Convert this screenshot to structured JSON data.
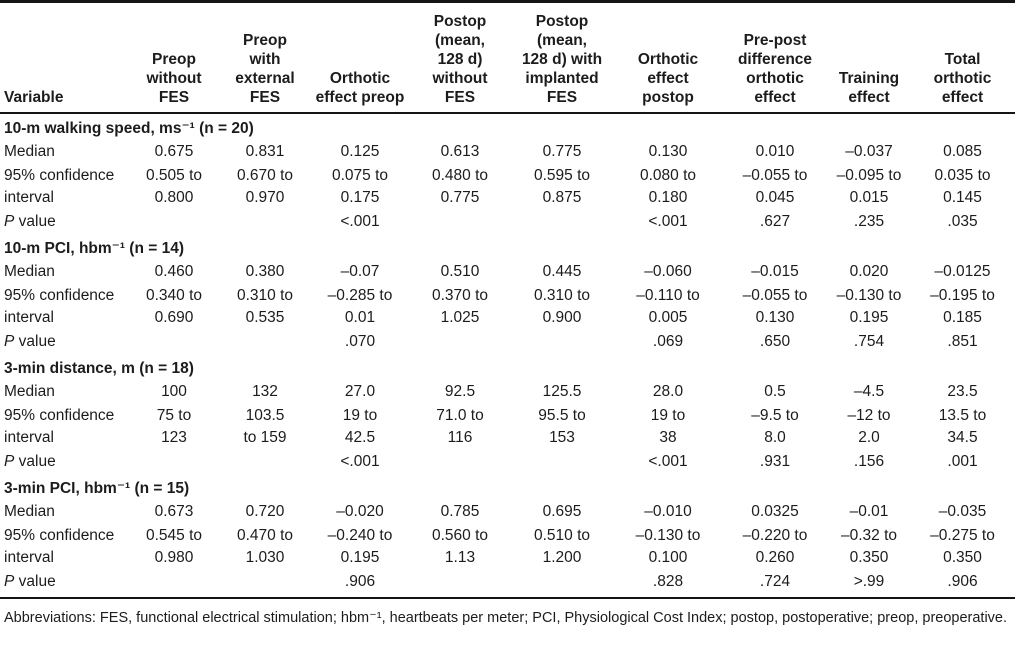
{
  "table": {
    "columns": [
      {
        "label": "Variable"
      },
      {
        "label": "Preop\nwithout\nFES"
      },
      {
        "label": "Preop\nwith\nexternal\nFES"
      },
      {
        "label": "Orthotic\neffect preop"
      },
      {
        "label": "Postop\n(mean,\n128 d)\nwithout\nFES"
      },
      {
        "label": "Postop\n(mean,\n128 d) with\nimplanted\nFES"
      },
      {
        "label": "Orthotic\neffect\npostop"
      },
      {
        "label": "Pre-post\ndifference\northotic\neffect"
      },
      {
        "label": "Training\neffect"
      },
      {
        "label": "Total\northotic\neffect"
      }
    ],
    "row_labels": {
      "median": "Median",
      "ci": "95% confidence\ninterval",
      "p_italic": "P",
      "p_rest": " value"
    },
    "sections": [
      {
        "title": "10-m walking speed, ms⁻¹ (n = 20)",
        "median": [
          "0.675",
          "0.831",
          "0.125",
          "0.613",
          "0.775",
          "0.130",
          "0.010",
          "–0.037",
          "0.085"
        ],
        "ci": [
          "0.505 to\n0.800",
          "0.670 to\n0.970",
          "0.075 to\n0.175",
          "0.480 to\n0.775",
          "0.595 to\n0.875",
          "0.080 to\n0.180",
          "–0.055 to\n0.045",
          "–0.095 to\n0.015",
          "0.035 to\n0.145"
        ],
        "p": [
          "",
          "",
          "<.001",
          "",
          "",
          "<.001",
          ".627",
          ".235",
          ".035"
        ]
      },
      {
        "title": "10-m PCI, hbm⁻¹ (n = 14)",
        "median": [
          "0.460",
          "0.380",
          "–0.07",
          "0.510",
          "0.445",
          "–0.060",
          "–0.015",
          "0.020",
          "–0.0125"
        ],
        "ci": [
          "0.340 to\n0.690",
          "0.310 to\n0.535",
          "–0.285 to\n0.01",
          "0.370 to\n1.025",
          "0.310 to\n0.900",
          "–0.110 to\n0.005",
          "–0.055 to\n0.130",
          "–0.130 to\n0.195",
          "–0.195 to\n0.185"
        ],
        "p": [
          "",
          "",
          ".070",
          "",
          "",
          ".069",
          ".650",
          ".754",
          ".851"
        ]
      },
      {
        "title": "3-min distance, m (n = 18)",
        "median": [
          "100",
          "132",
          "27.0",
          "92.5",
          "125.5",
          "28.0",
          "0.5",
          "–4.5",
          "23.5"
        ],
        "ci": [
          "75 to\n123",
          "103.5\nto 159",
          "19 to\n42.5",
          "71.0 to\n116",
          "95.5 to\n153",
          "19 to\n38",
          "–9.5 to\n8.0",
          "–12 to\n2.0",
          "13.5 to\n34.5"
        ],
        "p": [
          "",
          "",
          "<.001",
          "",
          "",
          "<.001",
          ".931",
          ".156",
          ".001"
        ]
      },
      {
        "title": "3-min PCI, hbm⁻¹ (n = 15)",
        "median": [
          "0.673",
          "0.720",
          "–0.020",
          "0.785",
          "0.695",
          "–0.010",
          "0.0325",
          "–0.01",
          "–0.035"
        ],
        "ci": [
          "0.545 to\n0.980",
          "0.470 to\n1.030",
          "–0.240 to\n0.195",
          "0.560 to\n1.13",
          "0.510 to\n1.200",
          "–0.130 to\n0.100",
          "–0.220 to\n0.260",
          "–0.32 to\n0.350",
          "–0.275 to\n0.350"
        ],
        "p": [
          "",
          "",
          ".906",
          "",
          "",
          ".828",
          ".724",
          ">.99",
          ".906"
        ]
      }
    ]
  },
  "footnote": "Abbreviations: FES, functional electrical stimulation; hbm⁻¹, heartbeats per meter; PCI, Physiological Cost Index; postop, postoperative; preop, preoperative."
}
